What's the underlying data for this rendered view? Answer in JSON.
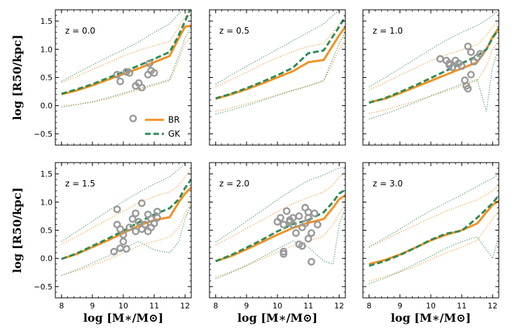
{
  "chart_data": {
    "type": "line",
    "xlabel": "log [M∗/M⊙]",
    "ylabel": "log [R50/kpc]",
    "xlim": [
      7.8,
      12.2
    ],
    "ylim": [
      -0.7,
      1.7
    ],
    "xticks": [
      8,
      9,
      10,
      11,
      12
    ],
    "yticks": [
      -0.5,
      0.0,
      0.5,
      1.0,
      1.5
    ],
    "xtick_labels": [
      "8",
      "9",
      "10",
      "11",
      "12"
    ],
    "ytick_labels": [
      "−0.5",
      "0.0",
      "0.5",
      "1.0",
      "1.5"
    ],
    "colors": {
      "BR": "#f5901e",
      "GK": "#2e8b57",
      "obs": "#999999"
    },
    "legend": {
      "location": "lower-right of first panel",
      "entries": [
        {
          "name": "",
          "marker": "open-circle"
        },
        {
          "name": "BR",
          "style": "solid"
        },
        {
          "name": "GK",
          "style": "dashed"
        }
      ]
    },
    "panels": [
      {
        "label": "z = 0.0",
        "BR": {
          "x": [
            8,
            8.5,
            9,
            9.5,
            10,
            10.5,
            11,
            11.5,
            11.75,
            12,
            12.2
          ],
          "y": [
            0.2,
            0.27,
            0.36,
            0.46,
            0.56,
            0.66,
            0.77,
            0.88,
            1.15,
            1.4,
            1.42
          ],
          "up": [
            0.41,
            0.52,
            0.64,
            0.76,
            0.88,
            0.98,
            1.06,
            1.14,
            1.35,
            1.58,
            1.62
          ],
          "lo": [
            0.0,
            0.02,
            0.06,
            0.12,
            0.2,
            0.28,
            0.36,
            0.44,
            0.75,
            1.1,
            1.22
          ]
        },
        "GK": {
          "x": [
            8,
            8.5,
            9,
            9.5,
            10,
            10.5,
            11,
            11.5,
            11.75,
            12,
            12.2
          ],
          "y": [
            0.21,
            0.29,
            0.38,
            0.49,
            0.6,
            0.71,
            0.83,
            0.95,
            1.2,
            1.5,
            1.75
          ],
          "up": [
            0.43,
            0.58,
            0.72,
            0.86,
            0.99,
            1.13,
            1.3,
            1.45,
            1.6,
            1.75,
            1.85
          ],
          "lo": [
            -0.03,
            0.02,
            0.07,
            0.14,
            0.22,
            0.3,
            0.38,
            0.46,
            0.82,
            1.2,
            1.4
          ]
        },
        "obs": [
          [
            9.8,
            0.55
          ],
          [
            9.9,
            0.43
          ],
          [
            10.1,
            0.6
          ],
          [
            10.2,
            0.58
          ],
          [
            10.4,
            0.35
          ],
          [
            10.5,
            0.4
          ],
          [
            10.6,
            0.32
          ],
          [
            10.8,
            0.55
          ],
          [
            10.9,
            0.62
          ],
          [
            11.0,
            0.58
          ],
          [
            10.85,
            0.75
          ]
        ]
      },
      {
        "label": "z = 0.5",
        "BR": {
          "x": [
            8,
            8.5,
            9,
            9.5,
            10,
            10.5,
            11,
            11.5,
            12,
            12.2
          ],
          "y": [
            0.12,
            0.2,
            0.29,
            0.39,
            0.5,
            0.61,
            0.77,
            0.81,
            1.25,
            1.4
          ],
          "up": [
            0.33,
            0.46,
            0.59,
            0.73,
            0.85,
            0.96,
            1.05,
            1.1,
            1.45,
            1.55
          ],
          "lo": [
            -0.1,
            -0.04,
            0.03,
            0.11,
            0.19,
            0.27,
            0.35,
            0.43,
            1.0,
            1.15
          ]
        },
        "GK": {
          "x": [
            8,
            8.5,
            9,
            9.5,
            10,
            10.5,
            11,
            11.5,
            12,
            12.2
          ],
          "y": [
            0.13,
            0.21,
            0.31,
            0.42,
            0.54,
            0.67,
            0.93,
            0.98,
            1.4,
            1.58
          ],
          "up": [
            0.38,
            0.54,
            0.7,
            0.85,
            1.0,
            1.15,
            1.3,
            1.45,
            1.7,
            1.85
          ],
          "lo": [
            -0.15,
            -0.08,
            0.0,
            0.09,
            0.18,
            0.27,
            0.35,
            0.45,
            1.1,
            1.3
          ]
        },
        "obs": []
      },
      {
        "label": "z = 1.0",
        "BR": {
          "x": [
            8,
            8.5,
            9,
            9.5,
            10,
            10.5,
            11,
            11.5,
            11.8,
            12,
            12.2
          ],
          "y": [
            0.06,
            0.12,
            0.22,
            0.33,
            0.44,
            0.55,
            0.66,
            0.77,
            1.0,
            1.22,
            1.38
          ],
          "up": [
            0.28,
            0.4,
            0.54,
            0.67,
            0.8,
            0.9,
            0.99,
            1.08,
            1.25,
            1.4,
            1.48
          ],
          "lo": [
            -0.14,
            -0.08,
            0.0,
            0.08,
            0.17,
            0.26,
            0.35,
            0.44,
            0.7,
            1.0,
            1.15
          ]
        },
        "GK": {
          "x": [
            8,
            8.5,
            9,
            9.5,
            10,
            10.5,
            11,
            11.5,
            11.8,
            12,
            12.2
          ],
          "y": [
            0.05,
            0.13,
            0.24,
            0.36,
            0.49,
            0.62,
            0.75,
            0.88,
            1.0,
            1.2,
            1.36
          ],
          "up": [
            0.33,
            0.49,
            0.66,
            0.83,
            1.0,
            1.16,
            1.3,
            1.42,
            1.52,
            1.6,
            1.7
          ],
          "lo": [
            -0.24,
            -0.15,
            -0.05,
            0.06,
            0.17,
            0.28,
            0.38,
            0.46,
            -0.1,
            0.7,
            1.0
          ]
        },
        "obs": [
          [
            10.3,
            0.83
          ],
          [
            10.5,
            0.8
          ],
          [
            10.6,
            0.72
          ],
          [
            10.7,
            0.68
          ],
          [
            10.8,
            0.8
          ],
          [
            10.9,
            0.75
          ],
          [
            11.0,
            0.7
          ],
          [
            11.1,
            0.45
          ],
          [
            11.15,
            0.35
          ],
          [
            11.2,
            1.05
          ],
          [
            11.3,
            0.95
          ],
          [
            11.4,
            0.78
          ],
          [
            11.5,
            0.85
          ],
          [
            11.6,
            0.92
          ],
          [
            11.2,
            0.3
          ],
          [
            11.3,
            0.55
          ],
          [
            10.6,
            0.75
          ]
        ]
      },
      {
        "label": "z = 1.5",
        "BR": {
          "x": [
            8,
            8.5,
            9,
            9.5,
            10,
            10.5,
            11,
            11.5,
            11.8,
            12,
            12.2
          ],
          "y": [
            -0.01,
            0.08,
            0.2,
            0.32,
            0.45,
            0.58,
            0.68,
            0.73,
            1.0,
            1.15,
            1.26
          ],
          "up": [
            0.25,
            0.39,
            0.54,
            0.69,
            0.84,
            0.98,
            1.1,
            1.18,
            1.3,
            1.45,
            1.58
          ],
          "lo": [
            -0.3,
            -0.22,
            -0.12,
            -0.02,
            0.1,
            0.22,
            0.3,
            0.38,
            0.55,
            0.8,
            1.0
          ]
        },
        "GK": {
          "x": [
            8,
            8.5,
            9,
            9.5,
            10,
            10.5,
            11,
            11.5,
            11.8,
            12,
            12.2
          ],
          "y": [
            -0.01,
            0.09,
            0.22,
            0.35,
            0.49,
            0.64,
            0.78,
            0.89,
            1.05,
            1.25,
            1.4
          ],
          "up": [
            0.3,
            0.48,
            0.66,
            0.84,
            1.01,
            1.17,
            1.32,
            1.45,
            1.58,
            1.7,
            1.8
          ],
          "lo": [
            -0.3,
            -0.2,
            -0.08,
            0.04,
            0.18,
            0.3,
            0.15,
            0.1,
            0.3,
            0.7,
            0.95
          ]
        },
        "obs": [
          [
            9.7,
            0.12
          ],
          [
            9.8,
            0.87
          ],
          [
            9.8,
            0.6
          ],
          [
            9.9,
            0.52
          ],
          [
            9.9,
            0.18
          ],
          [
            10.0,
            0.42
          ],
          [
            10.1,
            0.17
          ],
          [
            10.2,
            0.55
          ],
          [
            10.3,
            0.7
          ],
          [
            10.4,
            0.8
          ],
          [
            10.4,
            0.48
          ],
          [
            10.5,
            0.65
          ],
          [
            10.6,
            0.52
          ],
          [
            10.6,
            0.98
          ],
          [
            10.7,
            0.6
          ],
          [
            10.8,
            0.48
          ],
          [
            10.8,
            0.78
          ],
          [
            10.9,
            0.55
          ],
          [
            10.9,
            0.7
          ],
          [
            11.0,
            0.62
          ],
          [
            11.1,
            0.83
          ],
          [
            11.1,
            0.72
          ],
          [
            10.0,
            0.3
          ]
        ]
      },
      {
        "label": "z = 2.0",
        "BR": {
          "x": [
            8,
            8.5,
            9,
            9.5,
            10,
            10.5,
            11,
            11.5,
            11.8,
            12,
            12.2
          ],
          "y": [
            -0.05,
            0.04,
            0.16,
            0.29,
            0.42,
            0.54,
            0.63,
            0.7,
            0.9,
            1.05,
            1.12
          ],
          "up": [
            0.24,
            0.38,
            0.53,
            0.68,
            0.83,
            0.97,
            1.08,
            1.18,
            1.3,
            1.45,
            1.52
          ],
          "lo": [
            -0.33,
            -0.24,
            -0.13,
            -0.01,
            0.11,
            0.22,
            0.3,
            0.4,
            0.6,
            0.8,
            0.95
          ]
        },
        "GK": {
          "x": [
            8,
            8.5,
            9,
            9.5,
            10,
            10.5,
            11,
            11.5,
            11.8,
            12,
            12.2
          ],
          "y": [
            -0.05,
            0.06,
            0.19,
            0.33,
            0.48,
            0.61,
            0.68,
            0.82,
            1.0,
            1.15,
            1.22
          ],
          "up": [
            0.29,
            0.47,
            0.66,
            0.85,
            1.04,
            1.22,
            1.38,
            1.48,
            1.56,
            1.6,
            1.62
          ],
          "lo": [
            -0.36,
            -0.25,
            -0.12,
            0.02,
            0.17,
            0.31,
            0.2,
            -0.05,
            -0.1,
            0.6,
            0.9
          ]
        },
        "obs": [
          [
            10.0,
            0.65
          ],
          [
            10.1,
            0.72
          ],
          [
            10.2,
            0.6
          ],
          [
            10.2,
            0.12
          ],
          [
            10.3,
            0.84
          ],
          [
            10.4,
            0.68
          ],
          [
            10.5,
            0.6
          ],
          [
            10.5,
            0.72
          ],
          [
            10.6,
            0.45
          ],
          [
            10.7,
            0.75
          ],
          [
            10.7,
            0.25
          ],
          [
            10.8,
            0.55
          ],
          [
            10.9,
            0.9
          ],
          [
            10.9,
            0.62
          ],
          [
            11.0,
            0.82
          ],
          [
            11.0,
            0.72
          ],
          [
            11.1,
            0.45
          ],
          [
            11.2,
            0.8
          ],
          [
            11.3,
            0.6
          ],
          [
            10.2,
            0.08
          ],
          [
            11.1,
            -0.06
          ],
          [
            10.4,
            0.65
          ],
          [
            10.8,
            0.22
          ],
          [
            11.0,
            0.35
          ]
        ]
      },
      {
        "label": "z = 3.0",
        "BR": {
          "x": [
            8,
            8.5,
            9,
            9.5,
            10,
            10.5,
            11,
            11.5,
            12,
            12.2
          ],
          "y": [
            -0.1,
            -0.03,
            0.07,
            0.19,
            0.32,
            0.42,
            0.5,
            0.62,
            0.95,
            1.02
          ],
          "up": [
            0.2,
            0.33,
            0.46,
            0.59,
            0.72,
            0.84,
            0.94,
            1.04,
            1.2,
            1.3
          ],
          "lo": [
            -0.4,
            -0.33,
            -0.24,
            -0.14,
            -0.02,
            0.1,
            0.2,
            0.32,
            0.7,
            0.85
          ]
        },
        "GK": {
          "x": [
            8,
            8.5,
            9,
            9.5,
            10,
            10.5,
            11,
            11.5,
            12,
            12.2
          ],
          "y": [
            -0.13,
            -0.05,
            0.06,
            0.19,
            0.33,
            0.44,
            0.49,
            0.72,
            0.98,
            1.12
          ],
          "up": [
            0.2,
            0.36,
            0.52,
            0.69,
            0.85,
            0.99,
            1.13,
            1.28,
            1.42,
            1.5
          ],
          "lo": [
            -0.45,
            -0.35,
            -0.23,
            -0.1,
            0.04,
            0.18,
            0.3,
            0.38,
            0.0,
            0.4
          ]
        },
        "obs": []
      }
    ]
  }
}
